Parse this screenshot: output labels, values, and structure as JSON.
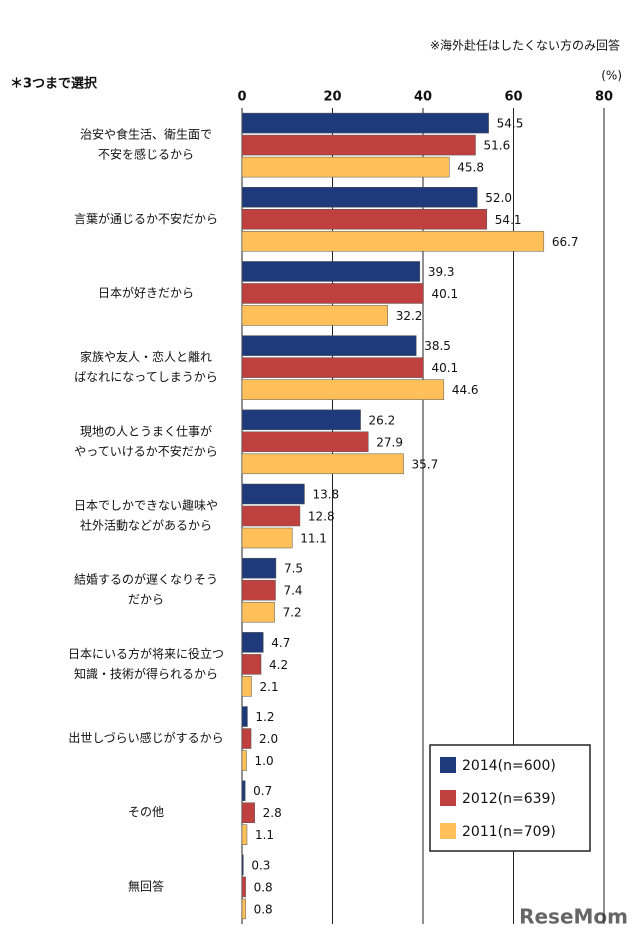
{
  "chart_data": {
    "type": "bar",
    "orientation": "horizontal",
    "note": "※海外赴任はしたくない方のみ回答",
    "subtitle": "＊3つまで選択",
    "unit_label": "(%)",
    "watermark": "ReseMom",
    "categories": [
      [
        "治安や食生活、衛生面で",
        "不安を感じるから"
      ],
      [
        "言葉が通じるか不安だから"
      ],
      [
        "日本が好きだから"
      ],
      [
        "家族や友人・恋人と離れ",
        "ばなれになってしまうから"
      ],
      [
        "現地の人とうまく仕事が",
        "やっていけるか不安だから"
      ],
      [
        "日本でしかできない趣味や",
        "社外活動などがあるから"
      ],
      [
        "結婚するのが遅くなりそう",
        "だから"
      ],
      [
        "日本にいる方が将来に役立つ",
        "知識・技術が得られるから"
      ],
      [
        "出世しづらい感じがするから"
      ],
      [
        "その他"
      ],
      [
        "無回答"
      ]
    ],
    "series": [
      {
        "name": "2014(n=600)",
        "color": "#1f3a7a",
        "values": [
          54.5,
          52.0,
          39.3,
          38.5,
          26.2,
          13.8,
          7.5,
          4.7,
          1.2,
          0.7,
          0.3
        ],
        "value_labels": [
          "54.5",
          "52.0",
          "39.3",
          "38.5",
          "26.2",
          "13.8",
          "7.5",
          "4.7",
          "1.2",
          "0.7",
          "0.3"
        ]
      },
      {
        "name": "2012(n=639)",
        "color": "#c0403f",
        "values": [
          51.6,
          54.1,
          40.1,
          40.1,
          27.9,
          12.8,
          7.4,
          4.2,
          2.0,
          2.8,
          0.8
        ],
        "value_labels": [
          "51.6",
          "54.1",
          "40.1",
          "40.1",
          "27.9",
          "12.8",
          "7.4",
          "4.2",
          "2.0",
          "2.8",
          "0.8"
        ]
      },
      {
        "name": "2011(n=709)",
        "color": "#ffc05a",
        "values": [
          45.8,
          66.7,
          32.2,
          44.6,
          35.7,
          11.1,
          7.2,
          2.1,
          1.0,
          1.1,
          0.8
        ],
        "value_labels": [
          "45.8",
          "66.7",
          "32.2",
          "44.6",
          "35.7",
          "11.1",
          "7.2",
          "2.1",
          "1.0",
          "1.1",
          "0.8"
        ]
      }
    ],
    "xlim": [
      0,
      80
    ],
    "xticks": [
      0,
      20,
      40,
      60,
      80
    ],
    "grid": true,
    "legend": "lower right"
  }
}
